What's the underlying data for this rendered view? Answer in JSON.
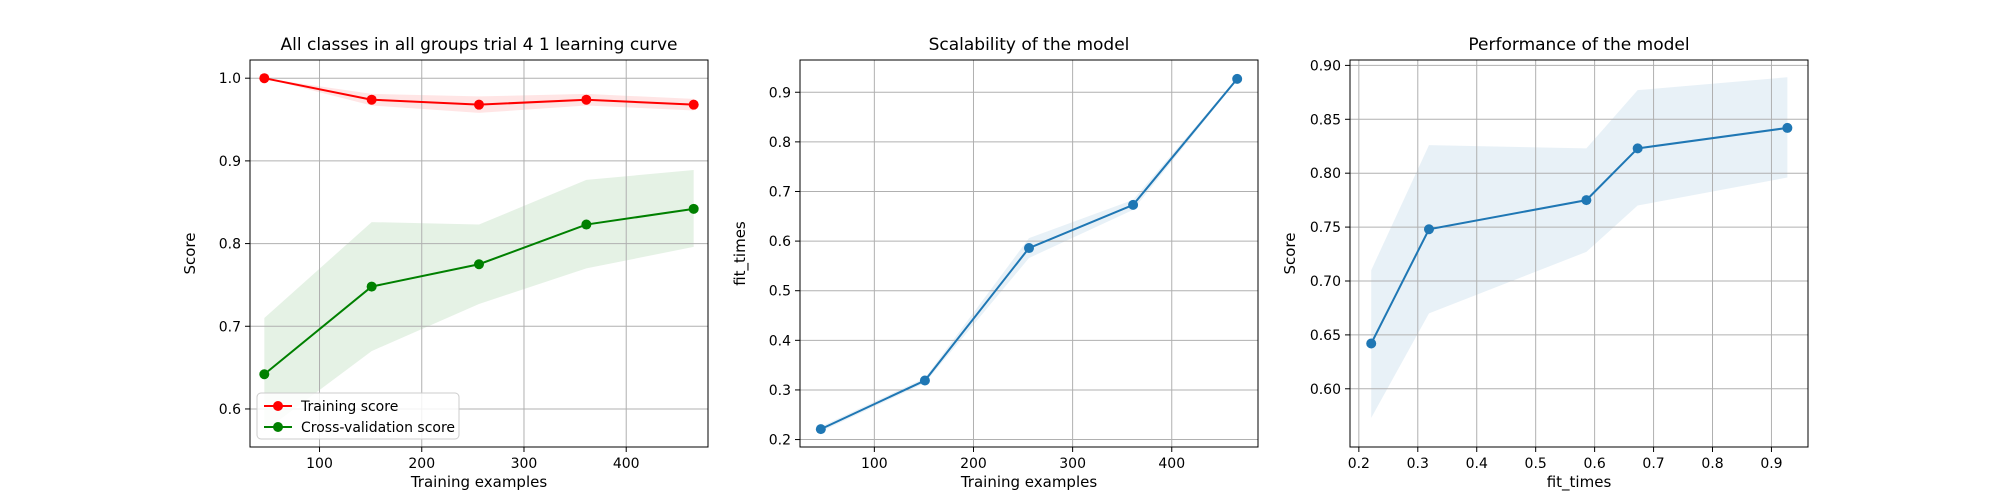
{
  "chart_data": [
    {
      "type": "line",
      "title": "All classes in all groups trial 4 1 learning curve",
      "xlabel": "Training examples",
      "ylabel": "Score",
      "xlim": [
        32,
        480
      ],
      "ylim": [
        0.554,
        1.022
      ],
      "xticks": [
        100,
        200,
        300,
        400
      ],
      "xtick_labels": [
        "100",
        "200",
        "300",
        "400"
      ],
      "yticks": [
        0.6,
        0.7,
        0.8,
        0.9,
        1.0
      ],
      "ytick_labels": [
        "0.6",
        "0.7",
        "0.8",
        "0.9",
        "1.0"
      ],
      "grid": true,
      "legend": "lower-left",
      "x": [
        46,
        151,
        256,
        361,
        466
      ],
      "series": [
        {
          "name": "Training score",
          "color": "#ff0000",
          "marker": "circle",
          "values": [
            1.0,
            0.974,
            0.968,
            0.974,
            0.968
          ],
          "band_lower": [
            1.0,
            0.967,
            0.958,
            0.967,
            0.961
          ],
          "band_upper": [
            1.0,
            0.981,
            0.978,
            0.981,
            0.975
          ]
        },
        {
          "name": "Cross-validation score",
          "color": "#008000",
          "marker": "circle",
          "values": [
            0.642,
            0.748,
            0.775,
            0.823,
            0.842
          ],
          "band_lower": [
            0.573,
            0.67,
            0.727,
            0.77,
            0.796
          ],
          "band_upper": [
            0.71,
            0.826,
            0.823,
            0.877,
            0.889
          ]
        }
      ]
    },
    {
      "type": "line",
      "title": "Scalability of the model",
      "xlabel": "Training examples",
      "ylabel": "fit_times",
      "xlim": [
        25,
        487
      ],
      "ylim": [
        0.185,
        0.965
      ],
      "xticks": [
        100,
        200,
        300,
        400
      ],
      "xtick_labels": [
        "100",
        "200",
        "300",
        "400"
      ],
      "yticks": [
        0.2,
        0.3,
        0.4,
        0.5,
        0.6,
        0.7,
        0.8,
        0.9
      ],
      "ytick_labels": [
        "0.2",
        "0.3",
        "0.4",
        "0.5",
        "0.6",
        "0.7",
        "0.8",
        "0.9"
      ],
      "grid": true,
      "x": [
        46,
        151,
        256,
        361,
        466
      ],
      "series": [
        {
          "color": "#1f77b4",
          "marker": "circle",
          "values": [
            0.221,
            0.319,
            0.586,
            0.673,
            0.927
          ],
          "band_lower": [
            0.216,
            0.314,
            0.566,
            0.663,
            0.925
          ],
          "band_upper": [
            0.226,
            0.324,
            0.606,
            0.683,
            0.929
          ]
        }
      ]
    },
    {
      "type": "line",
      "title": "Performance of the model",
      "xlabel": "fit_times",
      "ylabel": "Score",
      "xlim": [
        0.185,
        0.962
      ],
      "ylim": [
        0.546,
        0.905
      ],
      "xticks": [
        0.2,
        0.3,
        0.4,
        0.5,
        0.6,
        0.7,
        0.8,
        0.9
      ],
      "xtick_labels": [
        "0.2",
        "0.3",
        "0.4",
        "0.5",
        "0.6",
        "0.7",
        "0.8",
        "0.9"
      ],
      "yticks": [
        0.6,
        0.65,
        0.7,
        0.75,
        0.8,
        0.85,
        0.9
      ],
      "ytick_labels": [
        "0.60",
        "0.65",
        "0.70",
        "0.75",
        "0.80",
        "0.85",
        "0.90"
      ],
      "grid": true,
      "x": [
        0.221,
        0.319,
        0.586,
        0.673,
        0.927
      ],
      "series": [
        {
          "color": "#1f77b4",
          "marker": "circle",
          "values": [
            0.642,
            0.748,
            0.775,
            0.823,
            0.842
          ],
          "band_lower": [
            0.573,
            0.67,
            0.727,
            0.77,
            0.796
          ],
          "band_upper": [
            0.71,
            0.826,
            0.823,
            0.877,
            0.889
          ]
        }
      ]
    }
  ]
}
